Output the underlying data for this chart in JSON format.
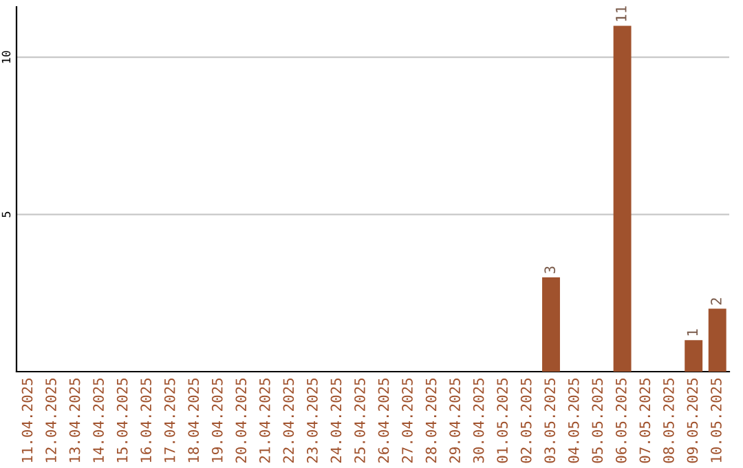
{
  "chart_data": {
    "type": "bar",
    "categories": [
      "11.04.2025",
      "12.04.2025",
      "13.04.2025",
      "14.04.2025",
      "15.04.2025",
      "16.04.2025",
      "17.04.2025",
      "18.04.2025",
      "19.04.2025",
      "20.04.2025",
      "21.04.2025",
      "22.04.2025",
      "23.04.2025",
      "24.04.2025",
      "25.04.2025",
      "26.04.2025",
      "27.04.2025",
      "28.04.2025",
      "29.04.2025",
      "30.04.2025",
      "01.05.2025",
      "02.05.2025",
      "03.05.2025",
      "04.05.2025",
      "05.05.2025",
      "06.05.2025",
      "07.05.2025",
      "08.05.2025",
      "09.05.2025",
      "10.05.2025"
    ],
    "values": [
      0,
      0,
      0,
      0,
      0,
      0,
      0,
      0,
      0,
      0,
      0,
      0,
      0,
      0,
      0,
      0,
      0,
      0,
      0,
      0,
      0,
      0,
      3,
      0,
      0,
      11,
      0,
      0,
      1,
      2
    ],
    "value_labels": [
      null,
      null,
      null,
      null,
      null,
      null,
      null,
      null,
      null,
      null,
      null,
      null,
      null,
      null,
      null,
      null,
      null,
      null,
      null,
      null,
      null,
      null,
      "3",
      null,
      null,
      "11",
      null,
      null,
      "1",
      "2"
    ],
    "color": "#a0522d",
    "ylim": [
      0,
      11.6
    ],
    "yticks": [
      5,
      10
    ],
    "grid": "y"
  }
}
